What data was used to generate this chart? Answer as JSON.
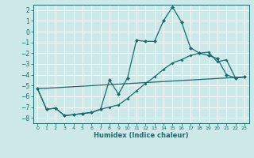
{
  "xlabel": "Humidex (Indice chaleur)",
  "bg_color": "#cce8e8",
  "line_color": "#1a6b6b",
  "grid_color": "#b0d8d8",
  "xlim": [
    -0.5,
    23.5
  ],
  "ylim": [
    -8.5,
    2.5
  ],
  "xticks": [
    0,
    1,
    2,
    3,
    4,
    5,
    6,
    7,
    8,
    9,
    10,
    11,
    12,
    13,
    14,
    15,
    16,
    17,
    18,
    19,
    20,
    21,
    22,
    23
  ],
  "yticks": [
    -8,
    -7,
    -6,
    -5,
    -4,
    -3,
    -2,
    -1,
    0,
    1,
    2
  ],
  "line1_x": [
    0,
    1,
    2,
    3,
    4,
    5,
    6,
    7,
    8,
    9,
    10,
    11,
    12,
    13,
    14,
    15,
    16,
    17,
    18,
    19,
    20,
    21,
    22,
    23
  ],
  "line1_y": [
    -5.3,
    -7.2,
    -7.1,
    -7.8,
    -7.7,
    -7.6,
    -7.5,
    -7.2,
    -4.5,
    -5.8,
    -4.3,
    -0.8,
    -0.9,
    -0.9,
    1.0,
    2.3,
    0.9,
    -1.5,
    -2.0,
    -2.2,
    -2.5,
    -4.0,
    -4.3,
    -4.2
  ],
  "line2_x": [
    0,
    1,
    2,
    3,
    4,
    5,
    6,
    7,
    8,
    9,
    10,
    11,
    12,
    13,
    14,
    15,
    16,
    17,
    18,
    19,
    20,
    21,
    22,
    23
  ],
  "line2_y": [
    -5.3,
    -7.2,
    -7.1,
    -7.8,
    -7.7,
    -7.6,
    -7.5,
    -7.2,
    -7.0,
    -6.8,
    -6.2,
    -5.5,
    -4.8,
    -4.2,
    -3.5,
    -2.9,
    -2.6,
    -2.2,
    -2.0,
    -1.9,
    -2.8,
    -2.6,
    -4.3,
    -4.2
  ],
  "line3_x": [
    0,
    23
  ],
  "line3_y": [
    -5.3,
    -4.2
  ]
}
